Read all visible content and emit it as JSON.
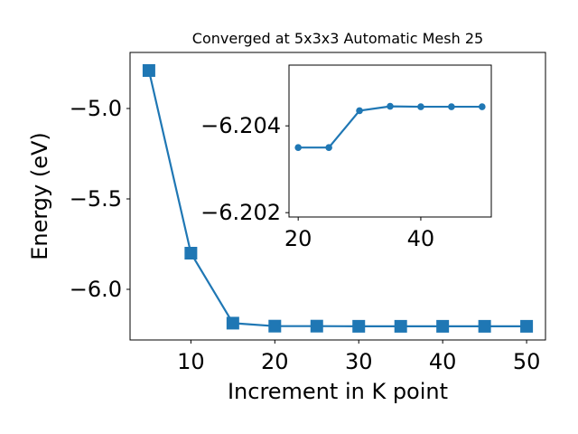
{
  "chart_data": [
    {
      "type": "line",
      "title": "Converged at 5x3x3 Automatic Mesh 25",
      "xlabel": "Increment in K point",
      "ylabel": "Energy (eV)",
      "xlim": [
        2.75,
        52.25
      ],
      "ylim": [
        -6.28,
        -4.69
      ],
      "xticks": [
        10,
        20,
        30,
        40,
        50
      ],
      "xtick_labels": [
        "10",
        "20",
        "30",
        "40",
        "50"
      ],
      "yticks": [
        -5.0,
        -5.5,
        -6.0
      ],
      "ytick_labels": [
        "−5.0",
        "−5.5",
        "−6.0"
      ],
      "grid": false,
      "marker": "square",
      "color": "#1f77b4",
      "series": [
        {
          "x": [
            5,
            10,
            15,
            20,
            25,
            30,
            35,
            40,
            45,
            50
          ],
          "y": [
            -4.79,
            -5.8,
            -6.187,
            -6.2035,
            -6.2035,
            -6.20435,
            -6.20445,
            -6.20444,
            -6.20444,
            -6.20444
          ]
        }
      ]
    },
    {
      "type": "line",
      "title": "",
      "inset": true,
      "xlim": [
        18.5,
        51.5
      ],
      "ylim": [
        -6.2019,
        -6.2054
      ],
      "xticks": [
        20,
        40
      ],
      "xtick_labels": [
        "20",
        "40"
      ],
      "yticks": [
        -6.204,
        -6.202
      ],
      "ytick_labels": [
        "−6.204",
        "−6.202"
      ],
      "grid": false,
      "marker": "circle",
      "color": "#1f77b4",
      "series": [
        {
          "x": [
            20,
            25,
            30,
            35,
            40,
            45,
            50
          ],
          "y": [
            -6.2035,
            -6.2035,
            -6.20435,
            -6.20445,
            -6.20444,
            -6.20444,
            -6.20444
          ]
        }
      ]
    }
  ]
}
